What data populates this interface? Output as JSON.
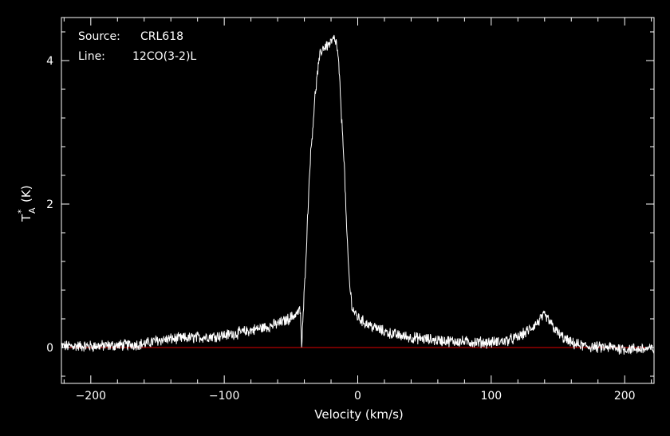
{
  "colors": {
    "background": "#000000",
    "foreground": "#ffffff",
    "baseline": "#e00000"
  },
  "info": {
    "source_label": "Source:",
    "source_value": "CRL618",
    "line_label": "Line:",
    "line_value": "12CO(3-2)L"
  },
  "chart_data": {
    "type": "line",
    "xlabel": "Velocity (km/s)",
    "ylabel_main": "T",
    "ylabel_sup": "*",
    "ylabel_sub": "A",
    "ylabel_unit": "(K)",
    "xlim": [
      -222,
      222
    ],
    "ylim": [
      -0.5,
      4.6
    ],
    "xticks": [
      -200,
      -100,
      0,
      100,
      200
    ],
    "xtick_labels": [
      "−200",
      "−100",
      "0",
      "100",
      "200"
    ],
    "yticks": [
      0,
      2,
      4
    ],
    "ytick_labels": [
      "0",
      "2",
      "4"
    ],
    "baseline_y": 0,
    "noise_amplitude": 0.07,
    "series": [
      {
        "x": [
          -222,
          -200,
          -180,
          -160,
          -150,
          -140,
          -120,
          -100,
          -90,
          -80,
          -70,
          -60,
          -55,
          -50,
          -46,
          -43,
          -42,
          -41,
          -40,
          -38,
          -36,
          -34,
          -32,
          -30,
          -28,
          -26,
          -24,
          -22,
          -20,
          -18,
          -16,
          -14,
          -13,
          -12,
          -11,
          -10,
          -9,
          -8,
          -6,
          -4,
          -2,
          0,
          5,
          10,
          20,
          30,
          40,
          60,
          80,
          100,
          110,
          120,
          125,
          130,
          135,
          138,
          140,
          143,
          146,
          150,
          155,
          160,
          170,
          180,
          190,
          200,
          210,
          222
        ],
        "y": [
          0.02,
          0.02,
          0.03,
          0.05,
          0.1,
          0.12,
          0.14,
          0.17,
          0.2,
          0.24,
          0.28,
          0.33,
          0.37,
          0.42,
          0.47,
          0.52,
          0.0,
          0.4,
          0.8,
          1.6,
          2.5,
          3.0,
          3.5,
          3.85,
          4.1,
          4.18,
          4.2,
          4.22,
          4.25,
          4.3,
          4.25,
          3.9,
          3.5,
          3.15,
          2.9,
          2.5,
          2.0,
          1.5,
          0.85,
          0.55,
          0.48,
          0.42,
          0.35,
          0.3,
          0.22,
          0.17,
          0.14,
          0.1,
          0.08,
          0.07,
          0.09,
          0.14,
          0.2,
          0.27,
          0.35,
          0.42,
          0.44,
          0.38,
          0.3,
          0.2,
          0.12,
          0.06,
          0.02,
          0.0,
          0.0,
          -0.02,
          -0.02,
          -0.02
        ]
      }
    ]
  }
}
